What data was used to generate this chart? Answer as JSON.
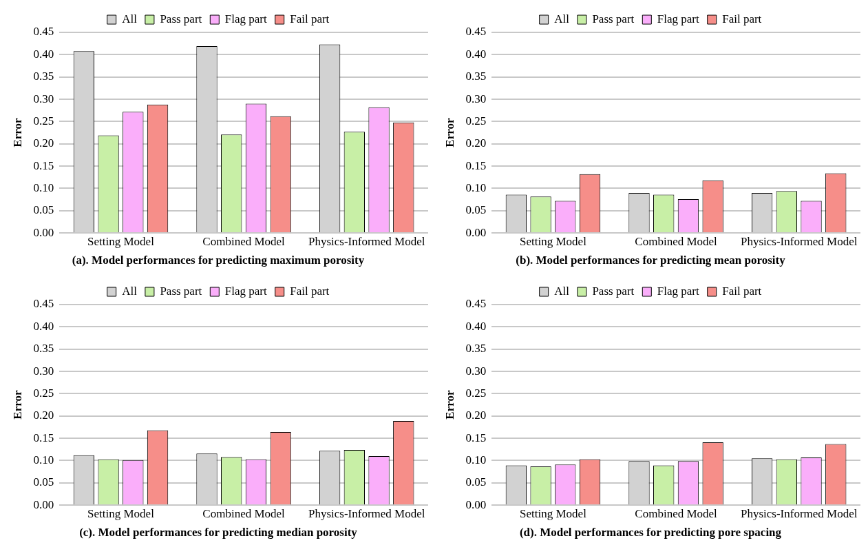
{
  "chart_data": [
    {
      "type": "bar",
      "title": "(a). Model performances for predicting maximum porosity",
      "ylabel": "Error",
      "categories": [
        "Setting Model",
        "Combined Model",
        "Physics-Informed Model"
      ],
      "series": [
        {
          "name": "All",
          "color": "#d2d2d2",
          "values": [
            0.408,
            0.419,
            0.423
          ]
        },
        {
          "name": "Pass part",
          "color": "#c8efa6",
          "values": [
            0.219,
            0.221,
            0.227
          ]
        },
        {
          "name": "Flag part",
          "color": "#faaefa",
          "values": [
            0.272,
            0.29,
            0.282
          ]
        },
        {
          "name": "Fail part",
          "color": "#f68e89",
          "values": [
            0.288,
            0.262,
            0.248
          ]
        }
      ],
      "ylim": [
        0,
        0.45
      ],
      "yticks": [
        {
          "value": 0,
          "label": "0.00"
        },
        {
          "value": 0.05,
          "label": "0.05"
        },
        {
          "value": 0.1,
          "label": "0.10"
        },
        {
          "value": 0.15,
          "label": "0.15"
        },
        {
          "value": 0.2,
          "label": "0.20"
        },
        {
          "value": 0.25,
          "label": "0.25"
        },
        {
          "value": 0.3,
          "label": "0.30"
        },
        {
          "value": 0.35,
          "label": "0.35"
        },
        {
          "value": 0.4,
          "label": "0.40"
        },
        {
          "value": 0.45,
          "label": "0.45"
        }
      ],
      "grid": "y",
      "legend": "top"
    },
    {
      "type": "bar",
      "title": "(b). Model performances for predicting mean porosity",
      "ylabel": "Error",
      "categories": [
        "Setting Model",
        "Combined Model",
        "Physics-Informed Model"
      ],
      "series": [
        {
          "name": "All",
          "color": "#d2d2d2",
          "values": [
            0.086,
            0.09,
            0.09
          ]
        },
        {
          "name": "Pass part",
          "color": "#c8efa6",
          "values": [
            0.082,
            0.086,
            0.094
          ]
        },
        {
          "name": "Flag part",
          "color": "#faaefa",
          "values": [
            0.072,
            0.076,
            0.072
          ]
        },
        {
          "name": "Fail part",
          "color": "#f68e89",
          "values": [
            0.132,
            0.118,
            0.134
          ]
        }
      ],
      "ylim": [
        0,
        0.45
      ],
      "yticks": [
        {
          "value": 0,
          "label": "0.00"
        },
        {
          "value": 0.05,
          "label": "0.05"
        },
        {
          "value": 0.1,
          "label": "0.10"
        },
        {
          "value": 0.15,
          "label": "0.15"
        },
        {
          "value": 0.2,
          "label": "0.20"
        },
        {
          "value": 0.25,
          "label": "0.25"
        },
        {
          "value": 0.3,
          "label": "0.30"
        },
        {
          "value": 0.35,
          "label": "0.35"
        },
        {
          "value": 0.4,
          "label": "0.40"
        },
        {
          "value": 0.45,
          "label": "0.45"
        }
      ],
      "grid": "y",
      "legend": "top"
    },
    {
      "type": "bar",
      "title": "(c). Model performances for predicting median porosity",
      "ylabel": "Error",
      "categories": [
        "Setting Model",
        "Combined Model",
        "Physics-Informed Model"
      ],
      "series": [
        {
          "name": "All",
          "color": "#d2d2d2",
          "values": [
            0.112,
            0.116,
            0.122
          ]
        },
        {
          "name": "Pass part",
          "color": "#c8efa6",
          "values": [
            0.103,
            0.108,
            0.124
          ]
        },
        {
          "name": "Flag part",
          "color": "#faaefa",
          "values": [
            0.101,
            0.103,
            0.11
          ]
        },
        {
          "name": "Fail part",
          "color": "#f68e89",
          "values": [
            0.168,
            0.164,
            0.189
          ]
        }
      ],
      "ylim": [
        0,
        0.45
      ],
      "yticks": [
        {
          "value": 0,
          "label": "0.00"
        },
        {
          "value": 0.05,
          "label": "0.05"
        },
        {
          "value": 0.1,
          "label": "0.10"
        },
        {
          "value": 0.15,
          "label": "0.15"
        },
        {
          "value": 0.2,
          "label": "0.20"
        },
        {
          "value": 0.25,
          "label": "0.25"
        },
        {
          "value": 0.3,
          "label": "0.30"
        },
        {
          "value": 0.35,
          "label": "0.35"
        },
        {
          "value": 0.4,
          "label": "0.40"
        },
        {
          "value": 0.45,
          "label": "0.45"
        }
      ],
      "grid": "y",
      "legend": "top"
    },
    {
      "type": "bar",
      "title": "(d). Model performances for predicting pore spacing",
      "ylabel": "Error",
      "categories": [
        "Setting Model",
        "Combined Model",
        "Physics-Informed Model"
      ],
      "series": [
        {
          "name": "All",
          "color": "#d2d2d2",
          "values": [
            0.089,
            0.099,
            0.105
          ]
        },
        {
          "name": "Pass part",
          "color": "#c8efa6",
          "values": [
            0.087,
            0.089,
            0.103
          ]
        },
        {
          "name": "Flag part",
          "color": "#faaefa",
          "values": [
            0.091,
            0.099,
            0.107
          ]
        },
        {
          "name": "Fail part",
          "color": "#f68e89",
          "values": [
            0.103,
            0.141,
            0.137
          ]
        }
      ],
      "ylim": [
        0,
        0.45
      ],
      "yticks": [
        {
          "value": 0,
          "label": "0.00"
        },
        {
          "value": 0.05,
          "label": "0.05"
        },
        {
          "value": 0.1,
          "label": "0.10"
        },
        {
          "value": 0.15,
          "label": "0.15"
        },
        {
          "value": 0.2,
          "label": "0.20"
        },
        {
          "value": 0.25,
          "label": "0.25"
        },
        {
          "value": 0.3,
          "label": "0.30"
        },
        {
          "value": 0.35,
          "label": "0.35"
        },
        {
          "value": 0.4,
          "label": "0.40"
        },
        {
          "value": 0.45,
          "label": "0.45"
        }
      ],
      "grid": "y",
      "legend": "top"
    }
  ]
}
